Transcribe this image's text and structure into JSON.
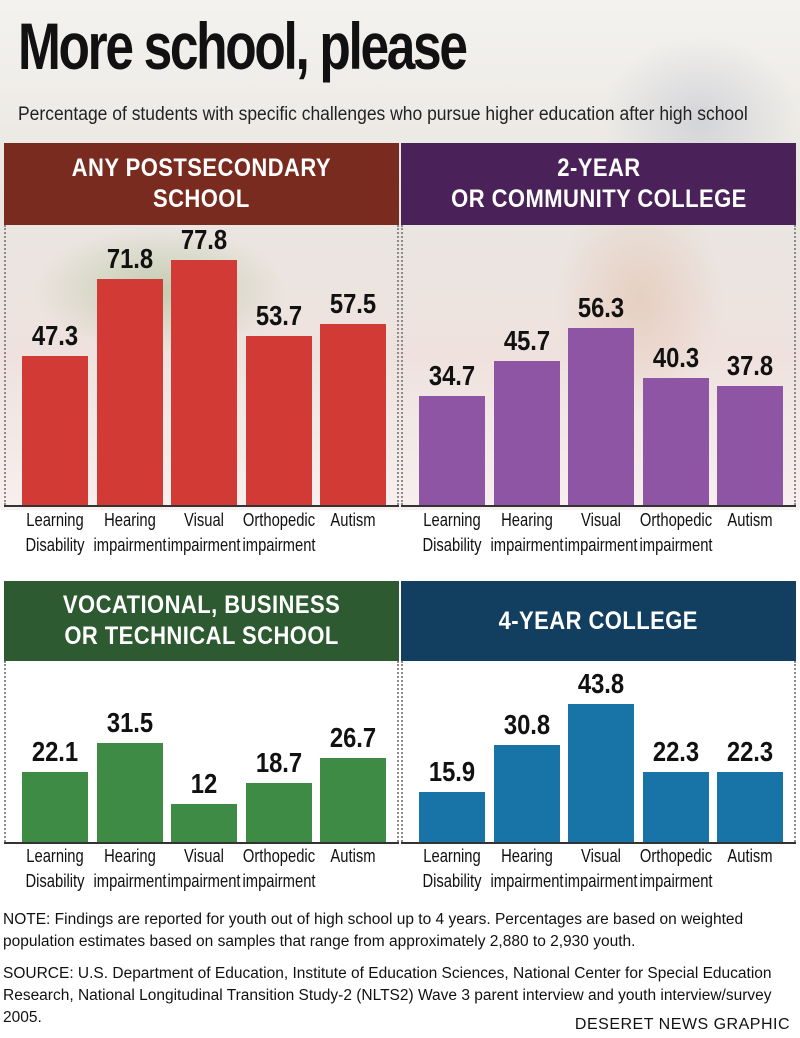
{
  "title": "More school, please",
  "subtitle": "Percentage of students with specific challenges who pursue higher education after high school",
  "categories": [
    "Learning\nDisability",
    "Hearing\nimpairment",
    "Visual\nimpairment",
    "Orthopedic\nimpairment",
    "Autism"
  ],
  "chart_data": [
    {
      "type": "bar",
      "title": "ANY POSTSECONDARY\nSCHOOL",
      "categories": [
        "Learning Disability",
        "Hearing impairment",
        "Visual impairment",
        "Orthopedic impairment",
        "Autism"
      ],
      "values": [
        47.3,
        71.8,
        77.8,
        53.7,
        57.5
      ],
      "labels": [
        "47.3",
        "71.8",
        "77.8",
        "53.7",
        "57.5"
      ],
      "color": "#d23b35",
      "header_color": "#7a2b1f",
      "ylim": [
        0,
        100
      ]
    },
    {
      "type": "bar",
      "title": "2-YEAR\nOR COMMUNITY COLLEGE",
      "categories": [
        "Learning Disability",
        "Hearing impairment",
        "Visual impairment",
        "Orthopedic impairment",
        "Autism"
      ],
      "values": [
        34.7,
        45.7,
        56.3,
        40.3,
        37.8
      ],
      "labels": [
        "34.7",
        "45.7",
        "56.3",
        "40.3",
        "37.8"
      ],
      "color": "#8e55a4",
      "header_color": "#4a2158",
      "ylim": [
        0,
        100
      ]
    },
    {
      "type": "bar",
      "title": "VOCATIONAL, BUSINESS\nOR TECHNICAL SCHOOL",
      "categories": [
        "Learning Disability",
        "Hearing impairment",
        "Visual impairment",
        "Orthopedic impairment",
        "Autism"
      ],
      "values": [
        22.1,
        31.5,
        12,
        18.7,
        26.7
      ],
      "labels": [
        "22.1",
        "31.5",
        "12",
        "18.7",
        "26.7"
      ],
      "color": "#3d8b45",
      "header_color": "#2d5a30",
      "ylim": [
        0,
        100
      ]
    },
    {
      "type": "bar",
      "title": "4-YEAR COLLEGE",
      "categories": [
        "Learning Disability",
        "Hearing impairment",
        "Visual impairment",
        "Orthopedic impairment",
        "Autism"
      ],
      "values": [
        15.9,
        30.8,
        43.8,
        22.3,
        22.3
      ],
      "labels": [
        "15.9",
        "30.8",
        "43.8",
        "22.3",
        "22.3"
      ],
      "color": "#1874a6",
      "header_color": "#123f60",
      "ylim": [
        0,
        100
      ]
    }
  ],
  "note": "NOTE: Findings are reported for youth out of high school up to 4 years. Percentages are based on weighted population estimates based on samples that range from approximately 2,880 to 2,930 youth.",
  "source": "SOURCE: U.S. Department of Education, Institute of Education Sciences, National Center for Special Education Research, National Longitudinal Transition Study-2 (NLTS2) Wave 3 parent interview and youth interview/survey 2005.",
  "credit": "DESERET NEWS GRAPHIC"
}
